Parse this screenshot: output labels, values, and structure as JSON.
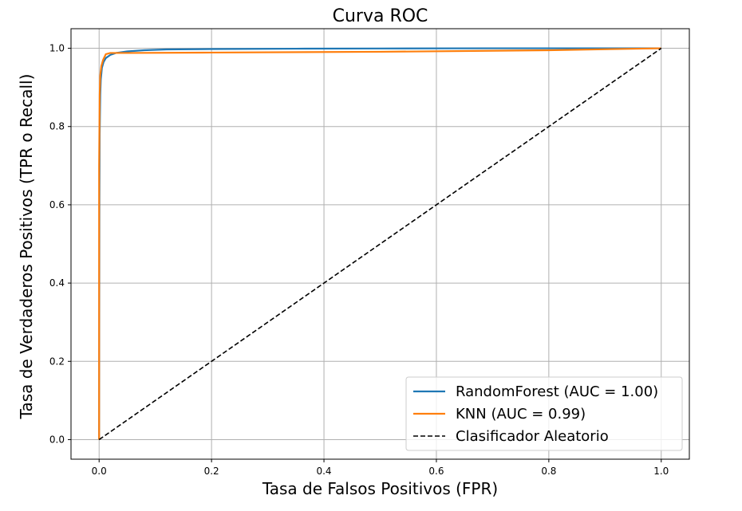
{
  "chart_data": {
    "type": "line",
    "title": "Curva ROC",
    "xlabel": "Tasa de Falsos Positivos (FPR)",
    "ylabel": "Tasa de Verdaderos Positivos (TPR o Recall)",
    "xlim": [
      -0.05,
      1.05
    ],
    "ylim": [
      -0.05,
      1.05
    ],
    "xticks": [
      0.0,
      0.2,
      0.4,
      0.6,
      0.8,
      1.0
    ],
    "yticks": [
      0.0,
      0.2,
      0.4,
      0.6,
      0.8,
      1.0
    ],
    "xtick_labels": [
      "0.0",
      "0.2",
      "0.4",
      "0.6",
      "0.8",
      "1.0"
    ],
    "ytick_labels": [
      "0.0",
      "0.2",
      "0.4",
      "0.6",
      "0.8",
      "1.0"
    ],
    "grid": true,
    "legend_position": "bottom-right",
    "series": [
      {
        "name": "RandomForest (AUC = 1.00)",
        "color": "#1f77b4",
        "style": "solid",
        "x": [
          0.0,
          0.0005,
          0.001,
          0.002,
          0.003,
          0.005,
          0.008,
          0.012,
          0.02,
          0.03,
          0.05,
          0.08,
          0.12,
          0.2,
          0.35,
          0.5,
          0.7,
          0.85,
          1.0
        ],
        "y": [
          0.0,
          0.6,
          0.78,
          0.88,
          0.92,
          0.95,
          0.965,
          0.975,
          0.983,
          0.988,
          0.992,
          0.995,
          0.997,
          0.998,
          0.999,
          0.9995,
          1.0,
          1.0,
          1.0
        ]
      },
      {
        "name": "KNN (AUC = 0.99)",
        "color": "#ff7f0e",
        "style": "solid",
        "x": [
          0.0,
          0.0,
          0.001,
          0.002,
          0.004,
          0.007,
          0.012,
          0.02,
          0.05,
          0.2,
          0.5,
          0.8,
          1.0
        ],
        "y": [
          0.0,
          0.7,
          0.88,
          0.93,
          0.955,
          0.97,
          0.985,
          0.988,
          0.988,
          0.989,
          0.991,
          0.995,
          1.0
        ]
      },
      {
        "name": "Clasificador Aleatorio",
        "color": "#000000",
        "style": "dashed",
        "x": [
          0.0,
          1.0
        ],
        "y": [
          0.0,
          1.0
        ]
      }
    ]
  }
}
